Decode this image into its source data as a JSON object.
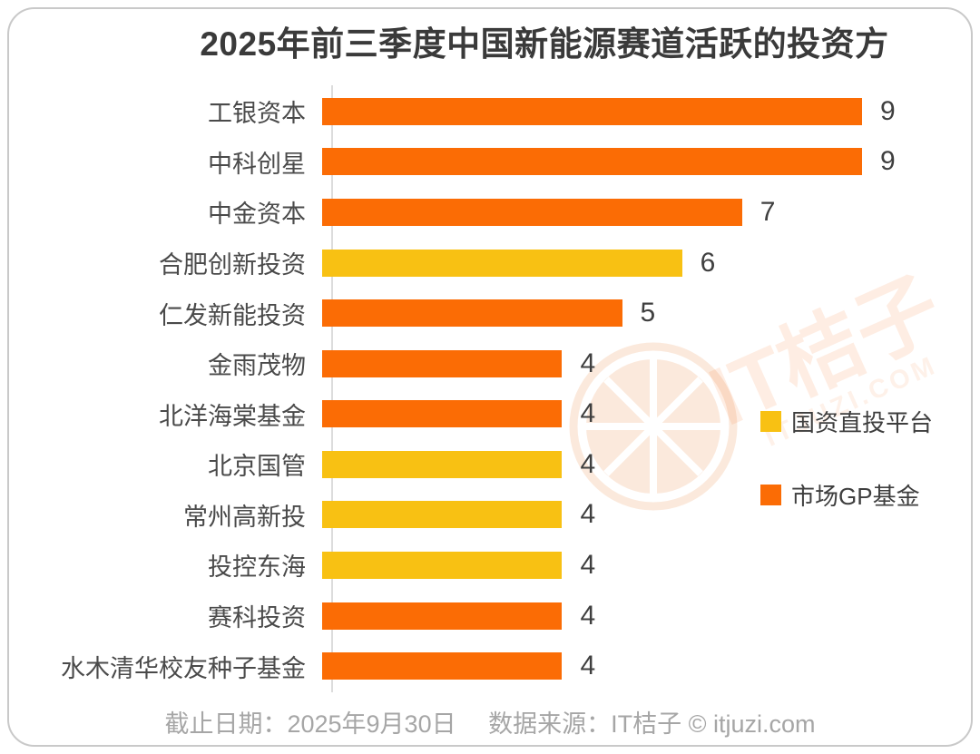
{
  "title": "2025年前三季度中国新能源赛道活跃的投资方",
  "chart_data": {
    "type": "bar",
    "orientation": "horizontal",
    "title": "2025年前三季度中国新能源赛道活跃的投资方",
    "categories": [
      "工银资本",
      "中科创星",
      "中金资本",
      "合肥创新投资",
      "仁发新能投资",
      "金雨茂物",
      "北洋海棠基金",
      "北京国管",
      "常州高新投",
      "投控东海",
      "赛科投资",
      "水木清华校友种子基金"
    ],
    "values": [
      9,
      9,
      7,
      6,
      5,
      4,
      4,
      4,
      4,
      4,
      4,
      4
    ],
    "series_by_bar": [
      "市场GP基金",
      "市场GP基金",
      "市场GP基金",
      "国资直投平台",
      "市场GP基金",
      "市场GP基金",
      "市场GP基金",
      "国资直投平台",
      "国资直投平台",
      "国资直投平台",
      "市场GP基金",
      "市场GP基金"
    ],
    "xlim": [
      0,
      9
    ],
    "grid": false,
    "legend_position": "right",
    "legend": [
      {
        "label": "国资直投平台",
        "color": "#F8C113"
      },
      {
        "label": "市场GP基金",
        "color": "#FB6C05"
      }
    ],
    "value_labels_shown": true
  },
  "watermark": {
    "text": "IT桔子",
    "subtext": "ITJUZI.COM",
    "logo": "orange-slice-icon",
    "color": "#F97323"
  },
  "footer": {
    "date_label": "截止日期：2025年9月30日",
    "source_label": "数据来源：IT桔子 © itjuzi.com"
  },
  "colors": {
    "bar_orange": "#FB6C05",
    "bar_yellow": "#F8C113",
    "title_text": "#3A3A3A",
    "label_text": "#4A4A4A",
    "footer_text": "#A6A6A6",
    "axis_line": "#DCDCDC",
    "card_border": "#C9C9C9"
  }
}
